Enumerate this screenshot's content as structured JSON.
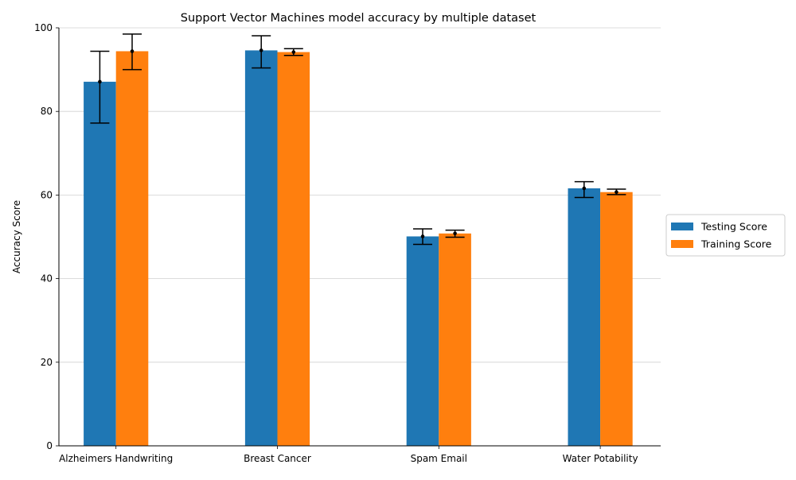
{
  "chart_data": {
    "type": "bar",
    "title": "Support Vector Machines model accuracy by multiple dataset",
    "xlabel": "",
    "ylabel": "Accuracy Score",
    "ylim": [
      0,
      100
    ],
    "yticks": [
      0,
      20,
      40,
      60,
      80,
      100
    ],
    "grid": "horizontal",
    "legend_position": "right",
    "categories": [
      "Alzheimers Handwriting",
      "Breast Cancer",
      "Spam Email",
      "Water Potability"
    ],
    "series": [
      {
        "name": "Testing Score",
        "color": "#1f77b4",
        "values": [
          87.1,
          94.6,
          50.1,
          61.6
        ],
        "error_low": [
          77.2,
          90.4,
          48.2,
          59.4
        ],
        "error_high": [
          94.4,
          98.1,
          51.9,
          63.2
        ]
      },
      {
        "name": "Training Score",
        "color": "#ff7f0e",
        "values": [
          94.4,
          94.2,
          50.8,
          60.7
        ],
        "error_low": [
          90.0,
          93.4,
          49.9,
          60.1
        ],
        "error_high": [
          98.5,
          95.0,
          51.6,
          61.4
        ]
      }
    ]
  }
}
